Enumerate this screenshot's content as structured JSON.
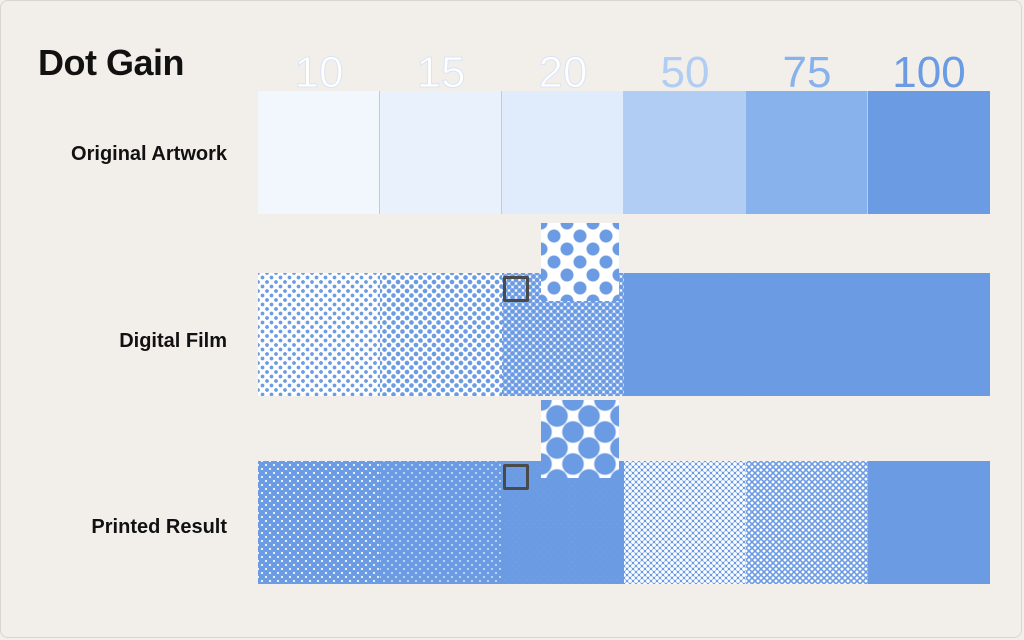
{
  "title": "Dot Gain",
  "percentages": [
    "10",
    "15",
    "20",
    "50",
    "75",
    "100"
  ],
  "rows": [
    {
      "key": "original",
      "label": "Original Artwork"
    },
    {
      "key": "film",
      "label": "Digital Film"
    },
    {
      "key": "printed",
      "label": "Printed Result"
    }
  ],
  "colors": {
    "ink": "#6b9be3",
    "background": "#f2efeb",
    "original_tints": [
      "#f2f7fe",
      "#e9f1fd",
      "#e0ecfb",
      "#b1cdf3",
      "#88b2ec",
      "#6b9be3"
    ]
  }
}
